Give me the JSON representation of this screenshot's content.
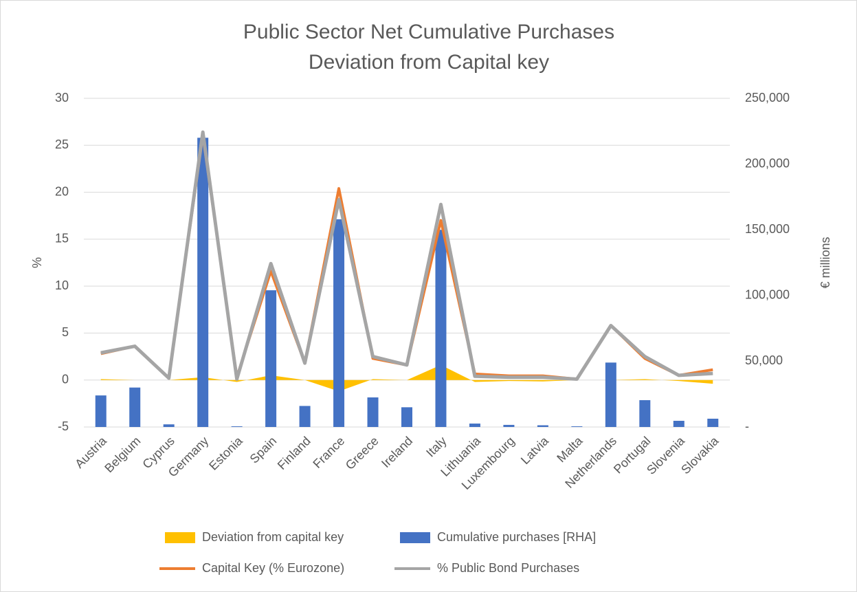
{
  "chart_data": {
    "type": "combo",
    "title": "Public Sector Net Cumulative Purchases",
    "subtitle": "Deviation from Capital key",
    "ylabel": "%",
    "y2label": "€ millions",
    "categories": [
      "Austria",
      "Belgium",
      "Cyprus",
      "Germany",
      "Estonia",
      "Spain",
      "Finland",
      "France",
      "Greece",
      "Ireland",
      "Italy",
      "Lithuania",
      "Luxembourg",
      "Latvia",
      "Malta",
      "Netherlands",
      "Portugal",
      "Slovenia",
      "Slovakia"
    ],
    "ylim": [
      -5,
      30
    ],
    "yticks": [
      -5,
      0,
      5,
      10,
      15,
      20,
      25,
      30
    ],
    "y2lim": [
      0,
      250000
    ],
    "y2ticks": [
      {
        "value": 0,
        "label": "-"
      },
      {
        "value": 50000,
        "label": "50,000"
      },
      {
        "value": 100000,
        "label": "100,000"
      },
      {
        "value": 150000,
        "label": "150,000"
      },
      {
        "value": 200000,
        "label": "200,000"
      },
      {
        "value": 250000,
        "label": "250,000"
      }
    ],
    "grid": true,
    "series": [
      {
        "name": "Deviation from capital key",
        "type": "area",
        "color": "#FFC000",
        "values": [
          0.1,
          0,
          0,
          0.3,
          -0.2,
          0.5,
          0,
          -1.2,
          0.1,
          0,
          1.6,
          -0.2,
          -0.1,
          -0.15,
          0,
          0,
          0.1,
          -0.1,
          -0.4
        ]
      },
      {
        "name": "Cumulative purchases [RHA]",
        "type": "bar",
        "axis": "y2",
        "color": "#4472C4",
        "values": [
          24000,
          30000,
          2000,
          220000,
          500,
          104000,
          16000,
          158000,
          22500,
          15000,
          150000,
          2600,
          1600,
          1300,
          500,
          49000,
          20400,
          4700,
          6300
        ]
      },
      {
        "name": "Capital Key (% Eurozone)",
        "type": "line",
        "color": "#ED7D31",
        "values": [
          2.8,
          3.6,
          0.2,
          26.1,
          0.3,
          11.6,
          1.8,
          20.4,
          2.3,
          1.6,
          17.0,
          0.65,
          0.45,
          0.45,
          0.1,
          5.8,
          2.3,
          0.5,
          1.1
        ]
      },
      {
        "name": "% Public Bond Purchases",
        "type": "line",
        "color": "#A5A5A5",
        "values": [
          2.9,
          3.6,
          0.2,
          26.4,
          0.1,
          12.4,
          1.8,
          19.2,
          2.5,
          1.6,
          18.7,
          0.4,
          0.3,
          0.3,
          0.1,
          5.8,
          2.5,
          0.5,
          0.7
        ]
      }
    ]
  }
}
